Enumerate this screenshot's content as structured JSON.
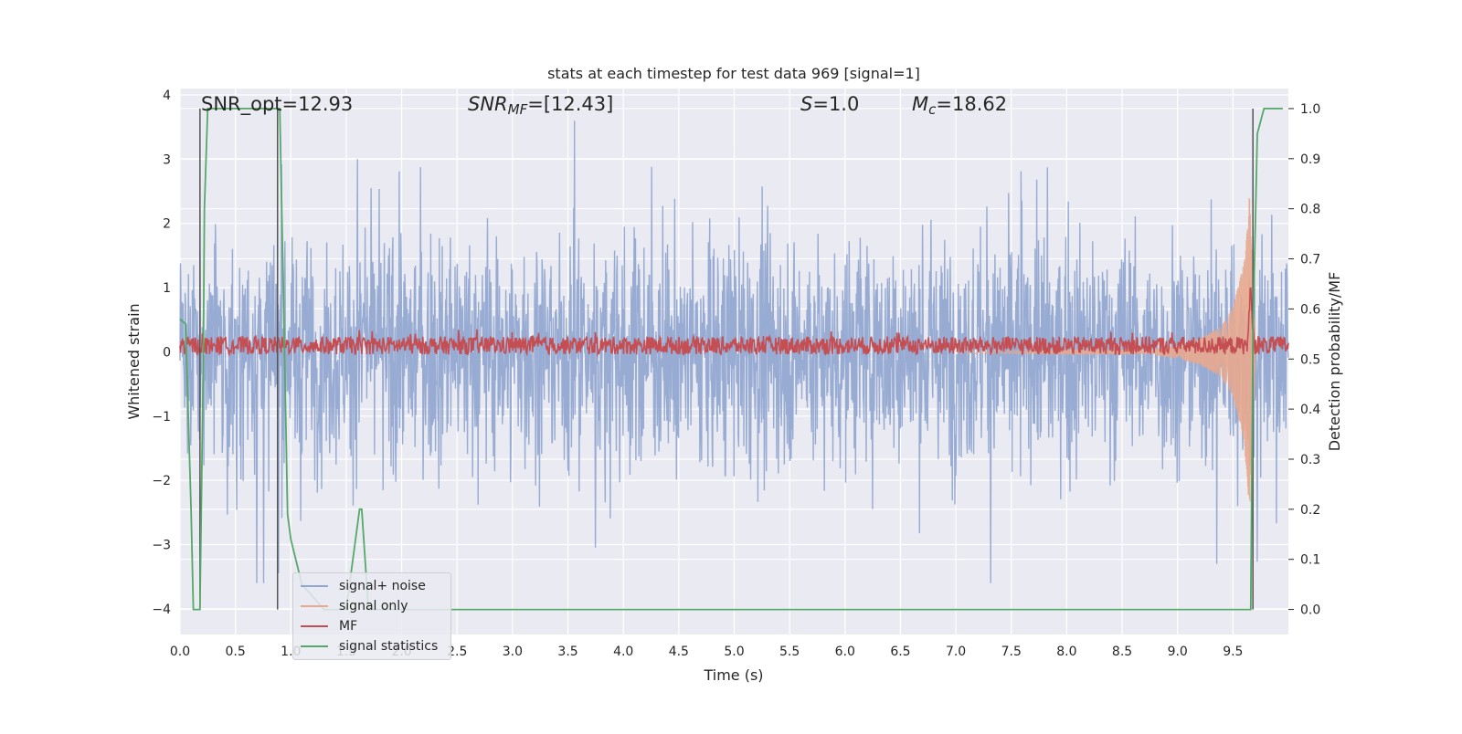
{
  "chart_data": {
    "type": "line",
    "title": "stats at each timestep for test data 969 [signal=1]",
    "xlabel": "Time (s)",
    "ylabel": "Whitened strain",
    "y2label": "Detection probability/MF",
    "xlim": [
      0.0,
      10.0
    ],
    "ylim": [
      -4.4,
      4.1
    ],
    "y2lim": [
      -0.05,
      1.04
    ],
    "xticks": [
      "0.0",
      "0.5",
      "1.0",
      "1.5",
      "2.0",
      "2.5",
      "3.0",
      "3.5",
      "4.0",
      "4.5",
      "5.0",
      "5.5",
      "6.0",
      "6.5",
      "7.0",
      "7.5",
      "8.0",
      "8.5",
      "9.0",
      "9.5"
    ],
    "yticks": [
      "4",
      "3",
      "2",
      "1",
      "0",
      "−1",
      "−2",
      "−3",
      "−4"
    ],
    "y2ticks": [
      "1.0",
      "0.9",
      "0.8",
      "0.7",
      "0.6",
      "0.5",
      "0.4",
      "0.3",
      "0.2",
      "0.1",
      "0.0"
    ],
    "grid": true,
    "legend_position": "lower-left",
    "annotations": {
      "snr_opt": "SNR_opt=12.93",
      "snr_mf_base": "SNR",
      "snr_mf_sub": "MF",
      "snr_mf_val": "=[12.43]",
      "s_base": "S",
      "s_val": "=1.0",
      "mc_base": "M",
      "mc_sub": "c",
      "mc_val": "=18.62"
    },
    "series": [
      {
        "name": "signal+ noise",
        "color": "#92a8d1",
        "description_axis": "left",
        "envelope_peaks": [
          2.9,
          3.0,
          3.6,
          2.9,
          3.2,
          3.1,
          3.7,
          2.7,
          3.4,
          3.3,
          3.4
        ]
      },
      {
        "name": "signal only",
        "color": "#e8a98e",
        "axis": "left",
        "x": [
          8.8,
          9.0,
          9.2,
          9.4,
          9.5,
          9.6,
          9.65,
          9.7
        ],
        "amplitude": [
          0.05,
          0.1,
          0.2,
          0.4,
          0.7,
          1.4,
          2.5,
          0.3
        ]
      },
      {
        "name": "MF",
        "color": "#c44e52",
        "axis": "left",
        "mean": 0.1,
        "peak": {
          "x": 9.66,
          "y": 1.0
        }
      },
      {
        "name": "signal statistics",
        "color": "#55a868",
        "axis": "right",
        "x": [
          0.0,
          0.05,
          0.1,
          0.12,
          0.18,
          0.21,
          0.22,
          0.25,
          0.3,
          0.35,
          0.87,
          0.9,
          0.94,
          0.97,
          1.0,
          1.1,
          1.3,
          1.45,
          1.5,
          1.62,
          1.64,
          1.7,
          1.8,
          5.0,
          9.0,
          9.66,
          9.68,
          9.72,
          9.78,
          9.85,
          9.95
        ],
        "y": [
          0.58,
          0.57,
          0.2,
          0.0,
          0.0,
          0.5,
          0.8,
          1.0,
          1.0,
          1.0,
          1.0,
          1.0,
          0.55,
          0.19,
          0.14,
          0.05,
          0.0,
          0.0,
          0.0,
          0.2,
          0.2,
          0.0,
          0.0,
          0.0,
          0.0,
          0.0,
          0.55,
          0.95,
          1.0,
          1.0,
          1.0
        ]
      }
    ],
    "vertical_lines_x": [
      0.18,
      0.88,
      9.68
    ]
  }
}
